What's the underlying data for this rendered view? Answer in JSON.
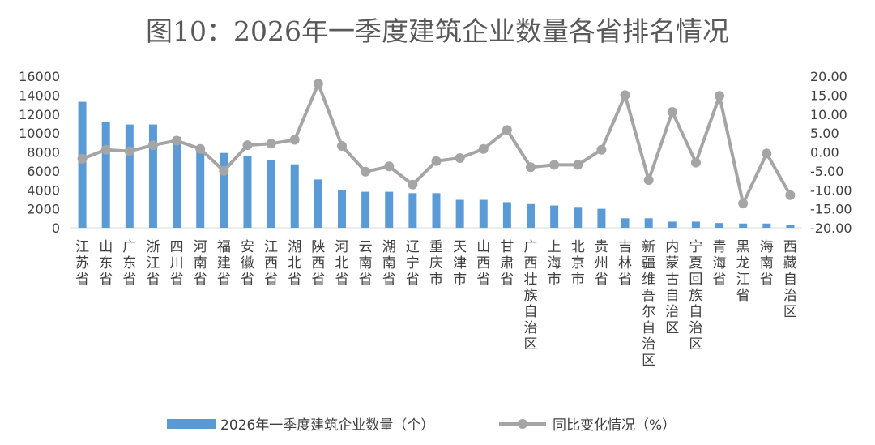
{
  "chart_data": {
    "type": "bar+line",
    "title": "图10：2026年一季度建筑企业数量各省排名情况",
    "categories": [
      "江苏省",
      "山东省",
      "广东省",
      "浙江省",
      "四川省",
      "河南省",
      "福建省",
      "安徽省",
      "江西省",
      "湖北省",
      "陕西省",
      "河北省",
      "云南省",
      "湖南省",
      "辽宁省",
      "重庆市",
      "天津市",
      "山西省",
      "甘肃省",
      "广西壮族自治区",
      "上海市",
      "北京市",
      "贵州省",
      "吉林省",
      "新疆维吾尔自治区",
      "内蒙古自治区",
      "宁夏回族自治区",
      "青海省",
      "黑龙江省",
      "海南省",
      "西藏自治区"
    ],
    "series": [
      {
        "name": "2026年一季度建筑企业数量（个）",
        "type": "bar",
        "axis": "left",
        "color": "#5b9bd5",
        "values": [
          13300,
          11200,
          10900,
          10900,
          9600,
          8500,
          7900,
          7600,
          7100,
          6700,
          5100,
          3950,
          3800,
          3800,
          3650,
          3650,
          2950,
          2950,
          2700,
          2500,
          2350,
          2200,
          2000,
          1000,
          1000,
          650,
          650,
          500,
          450,
          450,
          300
        ]
      },
      {
        "name": "同比变化情况（%）",
        "type": "line",
        "axis": "right",
        "color": "#a5a5a5",
        "values": [
          -1.8,
          0.6,
          0.2,
          1.8,
          3.0,
          0.8,
          -5.0,
          1.8,
          2.2,
          3.2,
          18.0,
          1.6,
          -5.2,
          -3.8,
          -8.6,
          -2.4,
          -1.6,
          0.8,
          5.8,
          -4.0,
          -3.4,
          -3.4,
          0.6,
          15.0,
          -7.4,
          10.6,
          -2.8,
          14.8,
          -13.6,
          -0.4,
          -11.4
        ]
      }
    ],
    "y_left": {
      "min": 0,
      "max": 16000,
      "step": 2000,
      "ticks": [
        "0",
        "2000",
        "4000",
        "6000",
        "8000",
        "10000",
        "12000",
        "14000",
        "16000"
      ]
    },
    "y_right": {
      "min": -20,
      "max": 20,
      "step": 5,
      "ticks": [
        "-20.00",
        "-15.00",
        "-10.00",
        "-5.00",
        "0.00",
        "5.00",
        "10.00",
        "15.00",
        "20.00"
      ]
    },
    "grid": false,
    "legend": "bottom"
  }
}
